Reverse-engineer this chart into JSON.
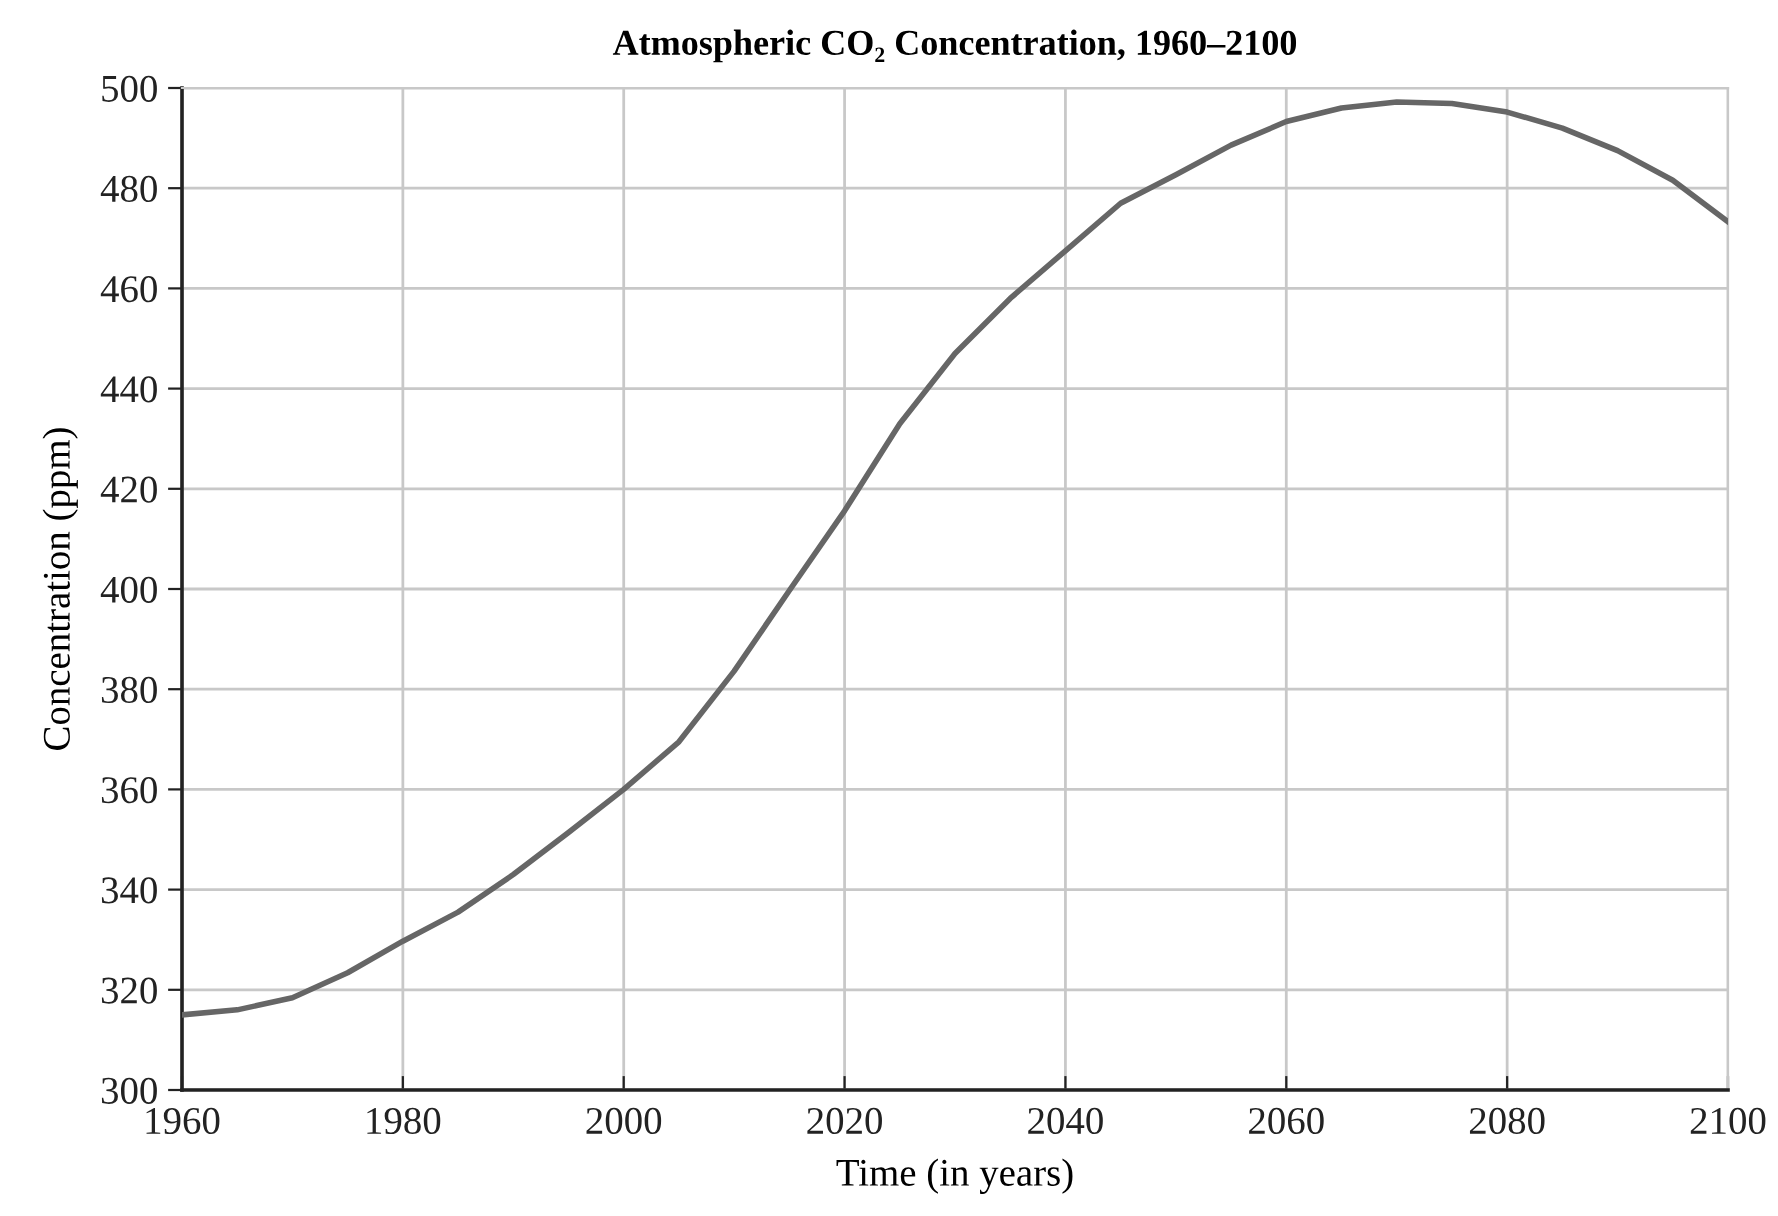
{
  "chart_data": {
    "type": "line",
    "title": "Atmospheric CO₂ Concentration, 1960–2100",
    "xlabel": "Time (in years)",
    "ylabel": "Concentration (ppm)",
    "x": [
      1960,
      1965,
      1970,
      1975,
      1980,
      1985,
      1990,
      1995,
      2000,
      2005,
      2010,
      2015,
      2020,
      2025,
      2030,
      2035,
      2040,
      2045,
      2050,
      2055,
      2060,
      2065,
      2070,
      2075,
      2080,
      2085,
      2090,
      2095,
      2100
    ],
    "series": [
      {
        "color": "#666666",
        "values": [
          315,
          316,
          318.4,
          323.4,
          329.7,
          335.5,
          343,
          351.4,
          360,
          369.5,
          383.6,
          399.7,
          415.6,
          433,
          447,
          458,
          467.5,
          477,
          482.7,
          488.6,
          493.3,
          496,
          497.2,
          496.9,
          495.2,
          492,
          487.5,
          481.6,
          473.3
        ]
      }
    ],
    "xlim": [
      1960,
      2100
    ],
    "xticks": [
      1960,
      1980,
      2000,
      2020,
      2040,
      2060,
      2080,
      2100
    ],
    "ylim": [
      300,
      500
    ],
    "yticks": [
      300,
      320,
      340,
      360,
      380,
      400,
      420,
      440,
      460,
      480,
      500
    ],
    "grid": true,
    "legend": false,
    "marker": "none",
    "line_style": "solid"
  }
}
